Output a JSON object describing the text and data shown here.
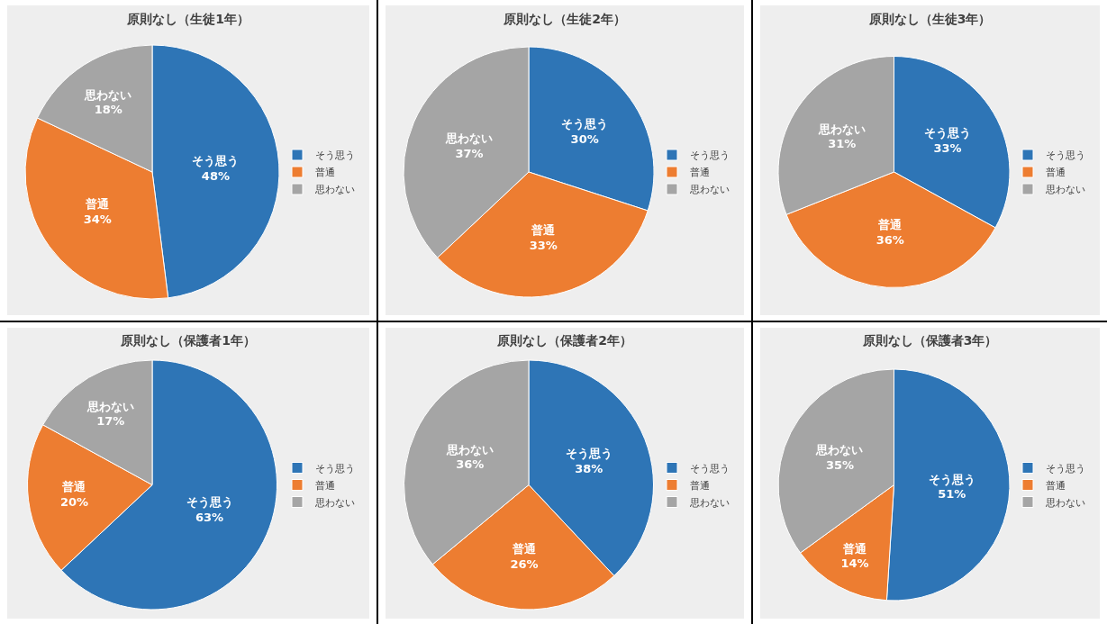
{
  "chart_data": [
    {
      "type": "pie",
      "title": "原則なし（生徒1年）",
      "categories": [
        "そう思う",
        "普通",
        "思わない"
      ],
      "values": [
        48,
        34,
        18
      ],
      "value_labels": [
        "48%",
        "34%",
        "18%"
      ],
      "colors": [
        "#2e75b6",
        "#ed7d31",
        "#a5a5a5"
      ],
      "legend": "right"
    },
    {
      "type": "pie",
      "title": "原則なし（生徒2年）",
      "categories": [
        "そう思う",
        "普通",
        "思わない"
      ],
      "values": [
        30,
        33,
        37
      ],
      "value_labels": [
        "30%",
        "33%",
        "37%"
      ],
      "colors": [
        "#2e75b6",
        "#ed7d31",
        "#a5a5a5"
      ],
      "legend": "right"
    },
    {
      "type": "pie",
      "title": "原則なし（生徒3年）",
      "categories": [
        "そう思う",
        "普通",
        "思わない"
      ],
      "values": [
        33,
        36,
        31
      ],
      "value_labels": [
        "33%",
        "36%",
        "31%"
      ],
      "colors": [
        "#2e75b6",
        "#ed7d31",
        "#a5a5a5"
      ],
      "legend": "right"
    },
    {
      "type": "pie",
      "title": "原則なし（保護者1年）",
      "categories": [
        "そう思う",
        "普通",
        "思わない"
      ],
      "values": [
        63,
        20,
        17
      ],
      "value_labels": [
        "63%",
        "20%",
        "17%"
      ],
      "colors": [
        "#2e75b6",
        "#ed7d31",
        "#a5a5a5"
      ],
      "legend": "right"
    },
    {
      "type": "pie",
      "title": "原則なし（保護者2年）",
      "categories": [
        "そう思う",
        "普通",
        "思わない"
      ],
      "values": [
        38,
        26,
        36
      ],
      "value_labels": [
        "38%",
        "26%",
        "36%"
      ],
      "colors": [
        "#2e75b6",
        "#ed7d31",
        "#a5a5a5"
      ],
      "legend": "right"
    },
    {
      "type": "pie",
      "title": "原則なし（保護者3年）",
      "categories": [
        "そう思う",
        "普通",
        "思わない"
      ],
      "values": [
        51,
        14,
        35
      ],
      "value_labels": [
        "51%",
        "14%",
        "35%"
      ],
      "colors": [
        "#2e75b6",
        "#ed7d31",
        "#a5a5a5"
      ],
      "legend": "right"
    }
  ]
}
